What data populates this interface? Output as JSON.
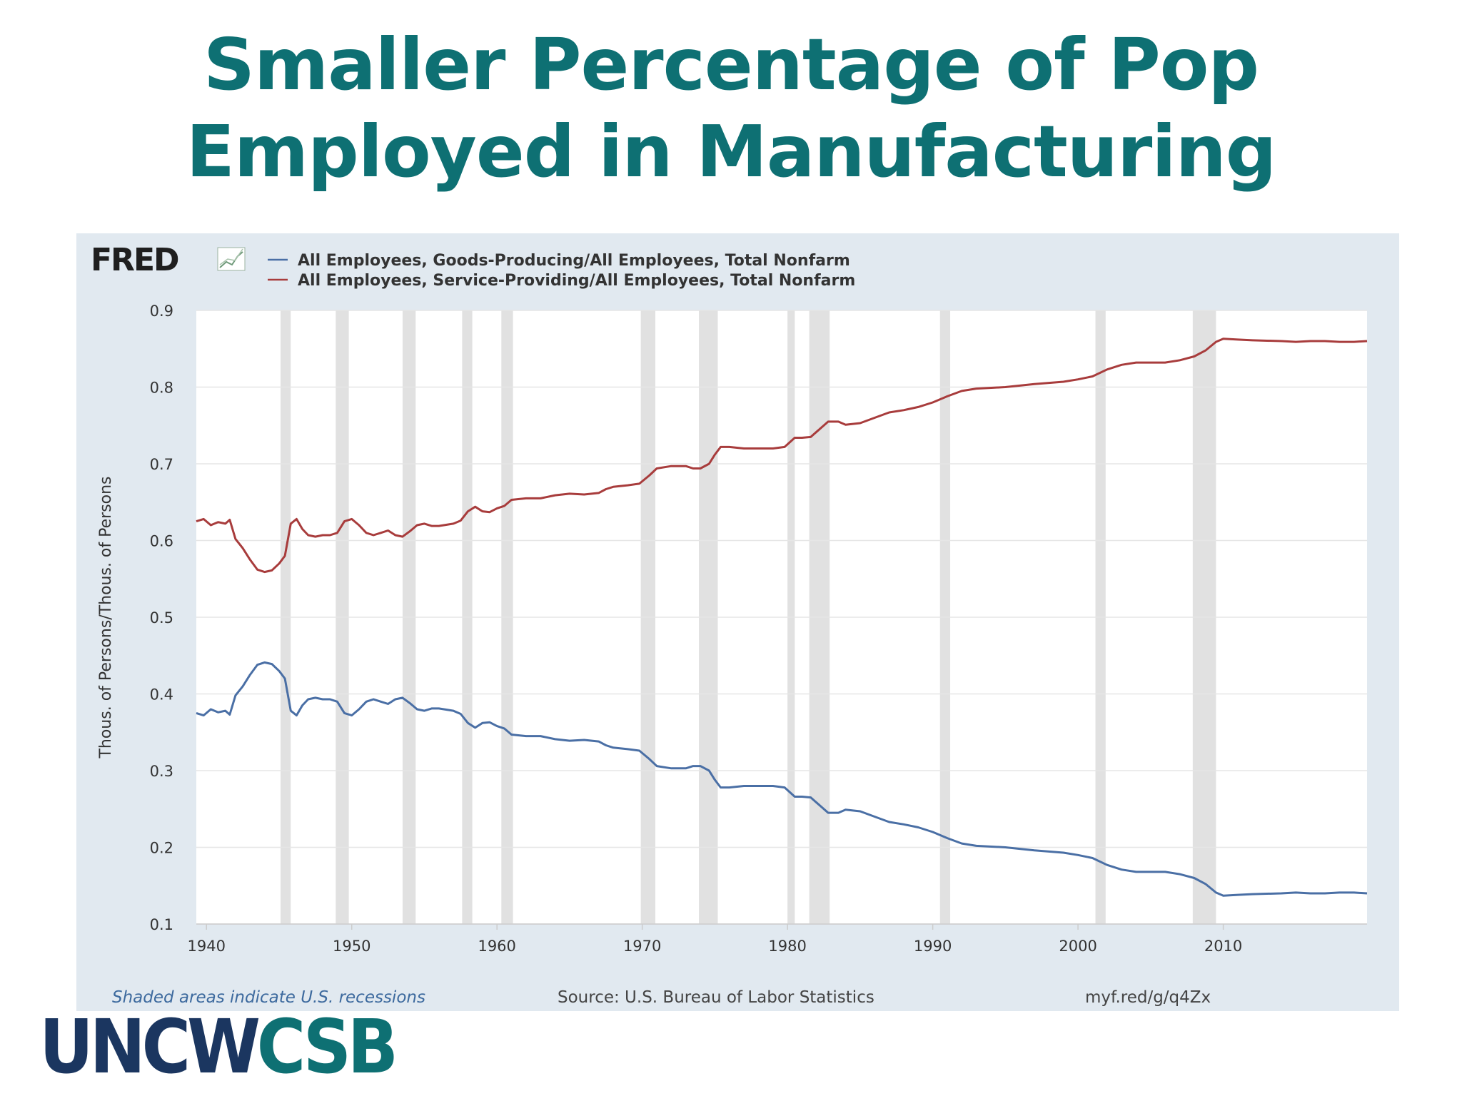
{
  "slide": {
    "title_line1": "Smaller Percentage of Pop",
    "title_line2": "Employed in Manufacturing",
    "logo_part1": "UNCW",
    "logo_part2": "CSB",
    "colors": {
      "title": "#0e7073",
      "logo_dark": "#1b3660",
      "logo_teal": "#0e7073"
    }
  },
  "chart_data": {
    "type": "line",
    "brand": "FRED",
    "ylabel": "Thous. of Persons/Thous. of Persons",
    "xlim": [
      1939.3,
      2019.9
    ],
    "ylim": [
      0.1,
      0.9
    ],
    "yticks": [
      "0.9",
      "0.8",
      "0.7",
      "0.6",
      "0.5",
      "0.4",
      "0.3",
      "0.2",
      "0.1"
    ],
    "xticks": [
      "1940",
      "1950",
      "1960",
      "1970",
      "1980",
      "1990",
      "2000",
      "2010"
    ],
    "grid": true,
    "legend_position": "top-left",
    "series": [
      {
        "name": "All Employees, Goods-Producing/All Employees, Total Nonfarm",
        "color": "#4a6fa5",
        "points": [
          [
            1939.3,
            0.375
          ],
          [
            1939.8,
            0.372
          ],
          [
            1940.3,
            0.38
          ],
          [
            1940.8,
            0.376
          ],
          [
            1941.3,
            0.378
          ],
          [
            1941.6,
            0.373
          ],
          [
            1942.0,
            0.398
          ],
          [
            1942.5,
            0.41
          ],
          [
            1943.0,
            0.425
          ],
          [
            1943.5,
            0.438
          ],
          [
            1944.0,
            0.441
          ],
          [
            1944.5,
            0.439
          ],
          [
            1945.0,
            0.43
          ],
          [
            1945.4,
            0.42
          ],
          [
            1945.8,
            0.378
          ],
          [
            1946.2,
            0.372
          ],
          [
            1946.6,
            0.385
          ],
          [
            1947.0,
            0.393
          ],
          [
            1947.5,
            0.395
          ],
          [
            1948.0,
            0.393
          ],
          [
            1948.5,
            0.393
          ],
          [
            1949.0,
            0.39
          ],
          [
            1949.5,
            0.375
          ],
          [
            1950.0,
            0.372
          ],
          [
            1950.5,
            0.38
          ],
          [
            1951.0,
            0.39
          ],
          [
            1951.5,
            0.393
          ],
          [
            1952.0,
            0.39
          ],
          [
            1952.5,
            0.387
          ],
          [
            1953.0,
            0.393
          ],
          [
            1953.5,
            0.395
          ],
          [
            1954.0,
            0.388
          ],
          [
            1954.5,
            0.38
          ],
          [
            1955.0,
            0.378
          ],
          [
            1955.5,
            0.381
          ],
          [
            1956.0,
            0.381
          ],
          [
            1957.0,
            0.378
          ],
          [
            1957.5,
            0.374
          ],
          [
            1958.0,
            0.362
          ],
          [
            1958.5,
            0.356
          ],
          [
            1959.0,
            0.362
          ],
          [
            1959.5,
            0.363
          ],
          [
            1960.0,
            0.358
          ],
          [
            1960.5,
            0.355
          ],
          [
            1961.0,
            0.347
          ],
          [
            1962.0,
            0.345
          ],
          [
            1963.0,
            0.345
          ],
          [
            1964.0,
            0.341
          ],
          [
            1965.0,
            0.339
          ],
          [
            1966.0,
            0.34
          ],
          [
            1967.0,
            0.338
          ],
          [
            1967.5,
            0.333
          ],
          [
            1968.0,
            0.33
          ],
          [
            1969.0,
            0.328
          ],
          [
            1969.8,
            0.326
          ],
          [
            1970.5,
            0.315
          ],
          [
            1971.0,
            0.306
          ],
          [
            1972.0,
            0.303
          ],
          [
            1973.0,
            0.303
          ],
          [
            1973.5,
            0.306
          ],
          [
            1974.0,
            0.306
          ],
          [
            1974.6,
            0.3
          ],
          [
            1975.0,
            0.288
          ],
          [
            1975.4,
            0.278
          ],
          [
            1976.0,
            0.278
          ],
          [
            1977.0,
            0.28
          ],
          [
            1978.0,
            0.28
          ],
          [
            1979.0,
            0.28
          ],
          [
            1979.8,
            0.278
          ],
          [
            1980.5,
            0.266
          ],
          [
            1981.0,
            0.266
          ],
          [
            1981.6,
            0.265
          ],
          [
            1982.2,
            0.255
          ],
          [
            1982.8,
            0.245
          ],
          [
            1983.5,
            0.245
          ],
          [
            1984.0,
            0.249
          ],
          [
            1985.0,
            0.247
          ],
          [
            1986.0,
            0.24
          ],
          [
            1987.0,
            0.233
          ],
          [
            1988.0,
            0.23
          ],
          [
            1989.0,
            0.226
          ],
          [
            1990.0,
            0.22
          ],
          [
            1991.0,
            0.212
          ],
          [
            1992.0,
            0.205
          ],
          [
            1993.0,
            0.202
          ],
          [
            1995.0,
            0.2
          ],
          [
            1997.0,
            0.196
          ],
          [
            1999.0,
            0.193
          ],
          [
            2000.0,
            0.19
          ],
          [
            2001.0,
            0.186
          ],
          [
            2002.0,
            0.177
          ],
          [
            2003.0,
            0.171
          ],
          [
            2004.0,
            0.168
          ],
          [
            2005.0,
            0.168
          ],
          [
            2006.0,
            0.168
          ],
          [
            2007.0,
            0.165
          ],
          [
            2008.0,
            0.16
          ],
          [
            2008.8,
            0.152
          ],
          [
            2009.5,
            0.141
          ],
          [
            2010.0,
            0.137
          ],
          [
            2011.0,
            0.138
          ],
          [
            2012.0,
            0.139
          ],
          [
            2014.0,
            0.14
          ],
          [
            2015.0,
            0.141
          ],
          [
            2016.0,
            0.14
          ],
          [
            2017.0,
            0.14
          ],
          [
            2018.0,
            0.141
          ],
          [
            2019.0,
            0.141
          ],
          [
            2019.9,
            0.14
          ]
        ]
      },
      {
        "name": "All Employees, Service-Providing/All Employees, Total Nonfarm",
        "color": "#a83c3c",
        "points": [
          [
            1939.3,
            0.625
          ],
          [
            1939.8,
            0.628
          ],
          [
            1940.3,
            0.62
          ],
          [
            1940.8,
            0.624
          ],
          [
            1941.3,
            0.622
          ],
          [
            1941.6,
            0.627
          ],
          [
            1942.0,
            0.602
          ],
          [
            1942.5,
            0.59
          ],
          [
            1943.0,
            0.575
          ],
          [
            1943.5,
            0.562
          ],
          [
            1944.0,
            0.559
          ],
          [
            1944.5,
            0.561
          ],
          [
            1945.0,
            0.57
          ],
          [
            1945.4,
            0.58
          ],
          [
            1945.8,
            0.622
          ],
          [
            1946.2,
            0.628
          ],
          [
            1946.6,
            0.615
          ],
          [
            1947.0,
            0.607
          ],
          [
            1947.5,
            0.605
          ],
          [
            1948.0,
            0.607
          ],
          [
            1948.5,
            0.607
          ],
          [
            1949.0,
            0.61
          ],
          [
            1949.5,
            0.625
          ],
          [
            1950.0,
            0.628
          ],
          [
            1950.5,
            0.62
          ],
          [
            1951.0,
            0.61
          ],
          [
            1951.5,
            0.607
          ],
          [
            1952.0,
            0.61
          ],
          [
            1952.5,
            0.613
          ],
          [
            1953.0,
            0.607
          ],
          [
            1953.5,
            0.605
          ],
          [
            1954.0,
            0.612
          ],
          [
            1954.5,
            0.62
          ],
          [
            1955.0,
            0.622
          ],
          [
            1955.5,
            0.619
          ],
          [
            1956.0,
            0.619
          ],
          [
            1957.0,
            0.622
          ],
          [
            1957.5,
            0.626
          ],
          [
            1958.0,
            0.638
          ],
          [
            1958.5,
            0.644
          ],
          [
            1959.0,
            0.638
          ],
          [
            1959.5,
            0.637
          ],
          [
            1960.0,
            0.642
          ],
          [
            1960.5,
            0.645
          ],
          [
            1961.0,
            0.653
          ],
          [
            1962.0,
            0.655
          ],
          [
            1963.0,
            0.655
          ],
          [
            1964.0,
            0.659
          ],
          [
            1965.0,
            0.661
          ],
          [
            1966.0,
            0.66
          ],
          [
            1967.0,
            0.662
          ],
          [
            1967.5,
            0.667
          ],
          [
            1968.0,
            0.67
          ],
          [
            1969.0,
            0.672
          ],
          [
            1969.8,
            0.674
          ],
          [
            1970.5,
            0.685
          ],
          [
            1971.0,
            0.694
          ],
          [
            1972.0,
            0.697
          ],
          [
            1973.0,
            0.697
          ],
          [
            1973.5,
            0.694
          ],
          [
            1974.0,
            0.694
          ],
          [
            1974.6,
            0.7
          ],
          [
            1975.0,
            0.712
          ],
          [
            1975.4,
            0.722
          ],
          [
            1976.0,
            0.722
          ],
          [
            1977.0,
            0.72
          ],
          [
            1978.0,
            0.72
          ],
          [
            1979.0,
            0.72
          ],
          [
            1979.8,
            0.722
          ],
          [
            1980.5,
            0.734
          ],
          [
            1981.0,
            0.734
          ],
          [
            1981.6,
            0.735
          ],
          [
            1982.2,
            0.745
          ],
          [
            1982.8,
            0.755
          ],
          [
            1983.5,
            0.755
          ],
          [
            1984.0,
            0.751
          ],
          [
            1985.0,
            0.753
          ],
          [
            1986.0,
            0.76
          ],
          [
            1987.0,
            0.767
          ],
          [
            1988.0,
            0.77
          ],
          [
            1989.0,
            0.774
          ],
          [
            1990.0,
            0.78
          ],
          [
            1991.0,
            0.788
          ],
          [
            1992.0,
            0.795
          ],
          [
            1993.0,
            0.798
          ],
          [
            1995.0,
            0.8
          ],
          [
            1997.0,
            0.804
          ],
          [
            1999.0,
            0.807
          ],
          [
            2000.0,
            0.81
          ],
          [
            2001.0,
            0.814
          ],
          [
            2002.0,
            0.823
          ],
          [
            2003.0,
            0.829
          ],
          [
            2004.0,
            0.832
          ],
          [
            2005.0,
            0.832
          ],
          [
            2006.0,
            0.832
          ],
          [
            2007.0,
            0.835
          ],
          [
            2008.0,
            0.84
          ],
          [
            2008.8,
            0.848
          ],
          [
            2009.5,
            0.859
          ],
          [
            2010.0,
            0.863
          ],
          [
            2011.0,
            0.862
          ],
          [
            2012.0,
            0.861
          ],
          [
            2014.0,
            0.86
          ],
          [
            2015.0,
            0.859
          ],
          [
            2016.0,
            0.86
          ],
          [
            2017.0,
            0.86
          ],
          [
            2018.0,
            0.859
          ],
          [
            2019.0,
            0.859
          ],
          [
            2019.9,
            0.86
          ]
        ]
      }
    ],
    "recessions": [
      [
        1945.1,
        1945.8
      ],
      [
        1948.9,
        1949.8
      ],
      [
        1953.5,
        1954.4
      ],
      [
        1957.6,
        1958.3
      ],
      [
        1960.3,
        1961.1
      ],
      [
        1969.9,
        1970.9
      ],
      [
        1973.9,
        1975.2
      ],
      [
        1980.0,
        1980.5
      ],
      [
        1981.5,
        1982.9
      ],
      [
        1990.5,
        1991.2
      ],
      [
        2001.2,
        2001.9
      ],
      [
        2007.9,
        2009.5
      ]
    ],
    "footer_note": "Shaded areas indicate U.S. recessions",
    "source": "Source: U.S. Bureau of Labor Statistics",
    "link": "myf.red/g/q4Zx",
    "colors": {
      "panel": "#e1e9f0",
      "plot_bg": "#ffffff",
      "grid": "#e6e6e6",
      "recession": "#e1e1e1",
      "text": "#333333"
    }
  }
}
